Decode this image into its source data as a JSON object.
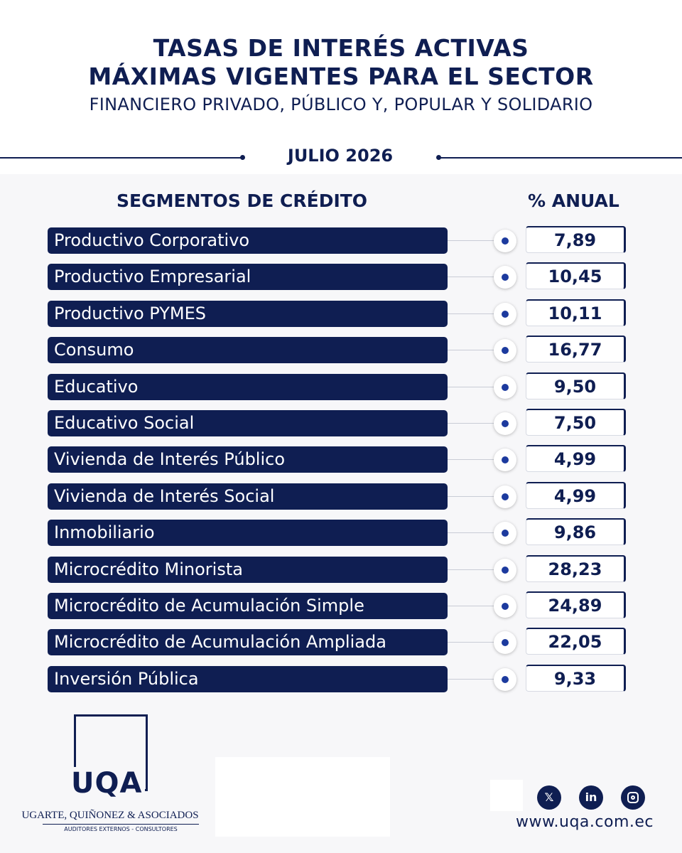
{
  "header": {
    "line1": "TASAS DE INTERÉS ACTIVAS",
    "line2": "MÁXIMAS VIGENTES PARA EL SECTOR",
    "line3": "FINANCIERO PRIVADO, PÚBLICO Y, POPULAR Y SOLIDARIO",
    "period": "JULIO 2026"
  },
  "table": {
    "col_segment": "SEGMENTOS DE CRÉDITO",
    "col_rate": "% ANUAL",
    "rows": [
      {
        "segment": "Productivo Corporativo",
        "rate": "7,89"
      },
      {
        "segment": "Productivo Empresarial",
        "rate": "10,45"
      },
      {
        "segment": "Productivo PYMES",
        "rate": "10,11"
      },
      {
        "segment": "Consumo",
        "rate": "16,77"
      },
      {
        "segment": "Educativo",
        "rate": "9,50"
      },
      {
        "segment": "Educativo Social",
        "rate": "7,50"
      },
      {
        "segment": "Vivienda de Interés Público",
        "rate": "4,99"
      },
      {
        "segment": "Vivienda de Interés Social",
        "rate": "4,99"
      },
      {
        "segment": "Inmobiliario",
        "rate": "9,86"
      },
      {
        "segment": "Microcrédito Minorista",
        "rate": "28,23"
      },
      {
        "segment": "Microcrédito de Acumulación Simple",
        "rate": "24,89"
      },
      {
        "segment": "Microcrédito de Acumulación Ampliada",
        "rate": "22,05"
      },
      {
        "segment": "Inversión Pública",
        "rate": "9,33"
      }
    ]
  },
  "footer": {
    "logo_letters": "UQA",
    "company": "UGARTE, QUIÑONEZ & ASOCIADOS",
    "tagline": "AUDITORES EXTERNOS - CONSULTORES",
    "website": "www.uqa.com.ec",
    "social": [
      "x-icon",
      "linkedin-icon",
      "instagram-icon"
    ]
  },
  "colors": {
    "navy": "#0f1e52",
    "accent": "#1c3a9e"
  }
}
